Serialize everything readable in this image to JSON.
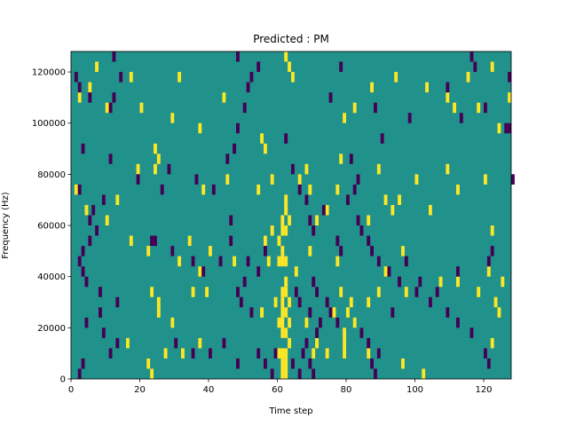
{
  "chart_data": {
    "type": "heatmap",
    "title": "Predicted : PM",
    "xlabel": "Time step",
    "ylabel": "Frequency (Hz)",
    "xlim": [
      0,
      128
    ],
    "ylim": [
      0,
      128000
    ],
    "xticks": [
      0,
      20,
      40,
      60,
      80,
      100,
      120
    ],
    "yticks": [
      0,
      20000,
      40000,
      60000,
      80000,
      100000,
      120000
    ],
    "grid": false,
    "legend": "none",
    "colors": {
      "background": "#21918c",
      "low": "#440154",
      "high": "#fde725"
    },
    "value_levels": {
      "low": -1,
      "background": 0,
      "high": 1
    },
    "cell_width": 1,
    "cell_height": 4000,
    "high_cells": [
      [
        61,
        0
      ],
      [
        62,
        0
      ],
      [
        61,
        4000
      ],
      [
        62,
        4000
      ],
      [
        60,
        8000
      ],
      [
        61,
        8000
      ],
      [
        62,
        8000
      ],
      [
        63,
        12000
      ],
      [
        61,
        16000
      ],
      [
        62,
        16000
      ],
      [
        60,
        20000
      ],
      [
        61,
        20000
      ],
      [
        63,
        20000
      ],
      [
        61,
        24000
      ],
      [
        62,
        24000
      ],
      [
        61,
        28000
      ],
      [
        63,
        28000
      ],
      [
        61,
        32000
      ],
      [
        62,
        32000
      ],
      [
        62,
        36000
      ],
      [
        60,
        44000
      ],
      [
        61,
        44000
      ],
      [
        62,
        44000
      ],
      [
        61,
        48000
      ],
      [
        60,
        52000
      ],
      [
        61,
        56000
      ],
      [
        62,
        56000
      ],
      [
        61,
        60000
      ],
      [
        63,
        60000
      ],
      [
        62,
        64000
      ],
      [
        62,
        68000
      ],
      [
        79,
        8000
      ],
      [
        79,
        12000
      ],
      [
        79,
        16000
      ],
      [
        80,
        24000
      ],
      [
        82,
        20000
      ],
      [
        81,
        28000
      ],
      [
        23,
        0
      ],
      [
        22,
        4000
      ],
      [
        16,
        12000
      ],
      [
        27,
        8000
      ],
      [
        37,
        12000
      ],
      [
        32,
        8000
      ],
      [
        70,
        8000
      ],
      [
        71,
        12000
      ],
      [
        74,
        8000
      ],
      [
        86,
        8000
      ],
      [
        96,
        4000
      ],
      [
        102,
        0
      ],
      [
        122,
        12000
      ],
      [
        25,
        24000
      ],
      [
        29,
        20000
      ],
      [
        23,
        32000
      ],
      [
        25,
        28000
      ],
      [
        35,
        32000
      ],
      [
        39,
        32000
      ],
      [
        55,
        24000
      ],
      [
        59,
        28000
      ],
      [
        68,
        20000
      ],
      [
        76,
        24000
      ],
      [
        78,
        32000
      ],
      [
        86,
        28000
      ],
      [
        89,
        32000
      ],
      [
        97,
        32000
      ],
      [
        107,
        36000
      ],
      [
        112,
        36000
      ],
      [
        118,
        32000
      ],
      [
        123,
        28000
      ],
      [
        124,
        24000
      ],
      [
        31,
        44000
      ],
      [
        37,
        40000
      ],
      [
        47,
        44000
      ],
      [
        57,
        44000
      ],
      [
        65,
        40000
      ],
      [
        69,
        48000
      ],
      [
        77,
        44000
      ],
      [
        91,
        40000
      ],
      [
        96,
        48000
      ],
      [
        121,
        40000
      ],
      [
        125,
        36000
      ],
      [
        17,
        52000
      ],
      [
        22,
        48000
      ],
      [
        34,
        52000
      ],
      [
        40,
        48000
      ],
      [
        56,
        52000
      ],
      [
        58,
        56000
      ],
      [
        71,
        60000
      ],
      [
        74,
        64000
      ],
      [
        86,
        60000
      ],
      [
        93,
        64000
      ],
      [
        95,
        68000
      ],
      [
        104,
        64000
      ],
      [
        122,
        56000
      ],
      [
        1,
        72000
      ],
      [
        4,
        64000
      ],
      [
        13,
        68000
      ],
      [
        10,
        60000
      ],
      [
        24,
        80000
      ],
      [
        25,
        84000
      ],
      [
        19,
        80000
      ],
      [
        38,
        72000
      ],
      [
        45,
        76000
      ],
      [
        54,
        72000
      ],
      [
        58,
        76000
      ],
      [
        66,
        76000
      ],
      [
        68,
        80000
      ],
      [
        69,
        72000
      ],
      [
        77,
        72000
      ],
      [
        78,
        84000
      ],
      [
        89,
        80000
      ],
      [
        91,
        68000
      ],
      [
        100,
        76000
      ],
      [
        109,
        80000
      ],
      [
        112,
        72000
      ],
      [
        120,
        76000
      ],
      [
        2,
        108000
      ],
      [
        5,
        112000
      ],
      [
        7,
        120000
      ],
      [
        10,
        104000
      ],
      [
        17,
        116000
      ],
      [
        20,
        104000
      ],
      [
        24,
        88000
      ],
      [
        29,
        100000
      ],
      [
        31,
        116000
      ],
      [
        37,
        96000
      ],
      [
        44,
        108000
      ],
      [
        55,
        92000
      ],
      [
        56,
        88000
      ],
      [
        62,
        124000
      ],
      [
        63,
        120000
      ],
      [
        64,
        116000
      ],
      [
        79,
        100000
      ],
      [
        82,
        104000
      ],
      [
        87,
        112000
      ],
      [
        94,
        116000
      ],
      [
        103,
        112000
      ],
      [
        109,
        108000
      ],
      [
        111,
        104000
      ],
      [
        115,
        116000
      ],
      [
        118,
        104000
      ],
      [
        122,
        120000
      ],
      [
        124,
        96000
      ],
      [
        127,
        108000
      ]
    ],
    "low_cells": [
      [
        2,
        0
      ],
      [
        3,
        4000
      ],
      [
        11,
        8000
      ],
      [
        13,
        12000
      ],
      [
        9,
        16000
      ],
      [
        4,
        20000
      ],
      [
        8,
        24000
      ],
      [
        13,
        28000
      ],
      [
        8,
        32000
      ],
      [
        4,
        36000
      ],
      [
        3,
        40000
      ],
      [
        2,
        44000
      ],
      [
        3,
        48000
      ],
      [
        5,
        52000
      ],
      [
        7,
        56000
      ],
      [
        5,
        60000
      ],
      [
        6,
        64000
      ],
      [
        9,
        68000
      ],
      [
        2,
        72000
      ],
      [
        1,
        116000
      ],
      [
        2,
        112000
      ],
      [
        5,
        108000
      ],
      [
        11,
        104000
      ],
      [
        12,
        108000
      ],
      [
        14,
        116000
      ],
      [
        12,
        124000
      ],
      [
        3,
        88000
      ],
      [
        11,
        84000
      ],
      [
        19,
        76000
      ],
      [
        26,
        72000
      ],
      [
        28,
        80000
      ],
      [
        36,
        76000
      ],
      [
        41,
        72000
      ],
      [
        45,
        84000
      ],
      [
        47,
        88000
      ],
      [
        48,
        96000
      ],
      [
        50,
        104000
      ],
      [
        51,
        112000
      ],
      [
        52,
        116000
      ],
      [
        48,
        124000
      ],
      [
        54,
        120000
      ],
      [
        23,
        52000
      ],
      [
        24,
        52000
      ],
      [
        29,
        48000
      ],
      [
        35,
        44000
      ],
      [
        38,
        40000
      ],
      [
        43,
        44000
      ],
      [
        46,
        52000
      ],
      [
        48,
        32000
      ],
      [
        49,
        28000
      ],
      [
        52,
        24000
      ],
      [
        50,
        36000
      ],
      [
        51,
        44000
      ],
      [
        46,
        60000
      ],
      [
        54,
        40000
      ],
      [
        56,
        48000
      ],
      [
        30,
        12000
      ],
      [
        35,
        8000
      ],
      [
        40,
        8000
      ],
      [
        44,
        12000
      ],
      [
        48,
        4000
      ],
      [
        54,
        8000
      ],
      [
        56,
        4000
      ],
      [
        58,
        0
      ],
      [
        59,
        8000
      ],
      [
        64,
        4000
      ],
      [
        66,
        0
      ],
      [
        67,
        8000
      ],
      [
        68,
        12000
      ],
      [
        69,
        4000
      ],
      [
        70,
        0
      ],
      [
        71,
        16000
      ],
      [
        69,
        24000
      ],
      [
        66,
        28000
      ],
      [
        65,
        32000
      ],
      [
        70,
        36000
      ],
      [
        71,
        32000
      ],
      [
        74,
        28000
      ],
      [
        72,
        20000
      ],
      [
        75,
        24000
      ],
      [
        77,
        20000
      ],
      [
        84,
        16000
      ],
      [
        86,
        12000
      ],
      [
        87,
        4000
      ],
      [
        88,
        0
      ],
      [
        89,
        8000
      ],
      [
        93,
        24000
      ],
      [
        95,
        36000
      ],
      [
        100,
        32000
      ],
      [
        104,
        28000
      ],
      [
        109,
        24000
      ],
      [
        112,
        20000
      ],
      [
        116,
        16000
      ],
      [
        120,
        8000
      ],
      [
        121,
        4000
      ],
      [
        62,
        92000
      ],
      [
        64,
        80000
      ],
      [
        66,
        72000
      ],
      [
        68,
        68000
      ],
      [
        69,
        60000
      ],
      [
        70,
        56000
      ],
      [
        73,
        64000
      ],
      [
        77,
        52000
      ],
      [
        78,
        48000
      ],
      [
        80,
        68000
      ],
      [
        82,
        72000
      ],
      [
        83,
        60000
      ],
      [
        84,
        56000
      ],
      [
        86,
        52000
      ],
      [
        87,
        48000
      ],
      [
        89,
        44000
      ],
      [
        92,
        40000
      ],
      [
        95,
        36000
      ],
      [
        97,
        44000
      ],
      [
        101,
        36000
      ],
      [
        106,
        32000
      ],
      [
        112,
        40000
      ],
      [
        121,
        44000
      ],
      [
        122,
        48000
      ],
      [
        75,
        108000
      ],
      [
        78,
        120000
      ],
      [
        81,
        84000
      ],
      [
        83,
        76000
      ],
      [
        88,
        104000
      ],
      [
        90,
        92000
      ],
      [
        98,
        100000
      ],
      [
        109,
        112000
      ],
      [
        113,
        100000
      ],
      [
        116,
        124000
      ],
      [
        117,
        120000
      ],
      [
        120,
        104000
      ],
      [
        126,
        96000
      ],
      [
        127,
        96000
      ],
      [
        127,
        116000
      ],
      [
        128,
        76000
      ]
    ]
  }
}
